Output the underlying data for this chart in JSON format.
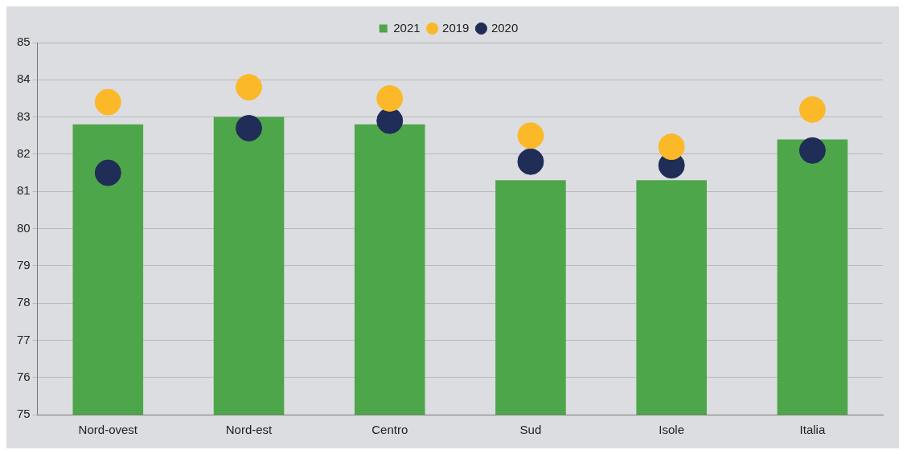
{
  "chart_data": {
    "type": "bar",
    "categories": [
      "Nord-ovest",
      "Nord-est",
      "Centro",
      "Sud",
      "Isole",
      "Italia"
    ],
    "series": [
      {
        "name": "2021",
        "color": "#4ea64a",
        "values": [
          82.8,
          83.0,
          82.8,
          81.3,
          81.3,
          82.4
        ]
      },
      {
        "name": "2019",
        "type": "scatter",
        "color": "#fbb829",
        "values": [
          83.4,
          83.8,
          83.5,
          82.5,
          82.2,
          83.2
        ]
      },
      {
        "name": "2020",
        "type": "scatter",
        "color": "#1f2d57",
        "values": [
          81.5,
          82.7,
          82.9,
          81.8,
          81.7,
          82.1
        ]
      }
    ],
    "ylim": [
      75,
      85
    ],
    "yticks": [
      75,
      76,
      77,
      78,
      79,
      80,
      81,
      82,
      83,
      84,
      85
    ],
    "grid": "y",
    "legend": "top",
    "marker": "circle"
  }
}
